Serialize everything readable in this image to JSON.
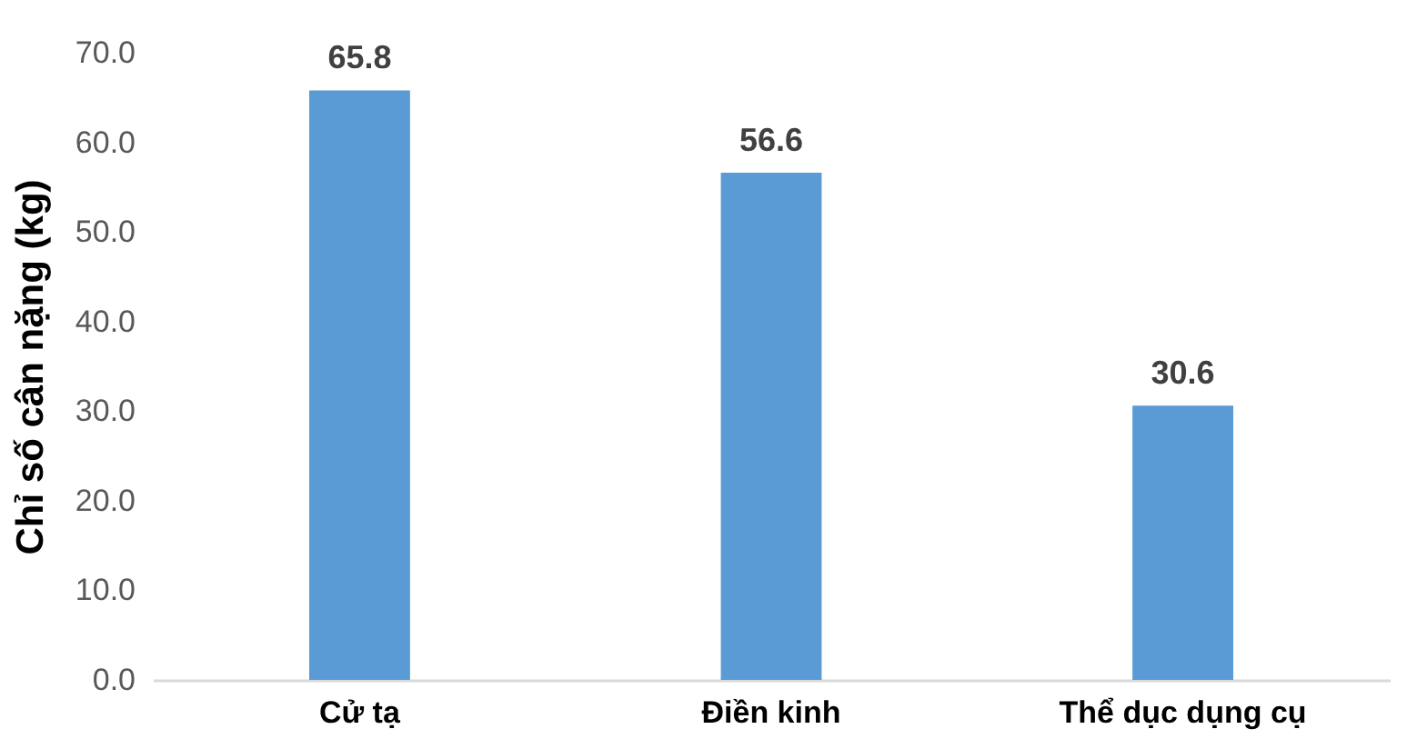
{
  "chart_data": {
    "type": "bar",
    "ylabel": "Chỉ số cân nặng (kg)",
    "categories": [
      "Cử tạ",
      "Điền kinh",
      "Thể dục dụng cụ"
    ],
    "values": [
      65.8,
      56.6,
      30.6
    ],
    "color": "#5b9bd5",
    "ylim": [
      0,
      70
    ],
    "yticks": [
      {
        "value": 0,
        "label": "0.0"
      },
      {
        "value": 10,
        "label": "10.0"
      },
      {
        "value": 20,
        "label": "20.0"
      },
      {
        "value": 30,
        "label": "30.0"
      },
      {
        "value": 40,
        "label": "40.0"
      },
      {
        "value": 50,
        "label": "50.0"
      },
      {
        "value": 60,
        "label": "60.0"
      },
      {
        "value": 70,
        "label": "70.0"
      }
    ],
    "data_labels": true
  }
}
